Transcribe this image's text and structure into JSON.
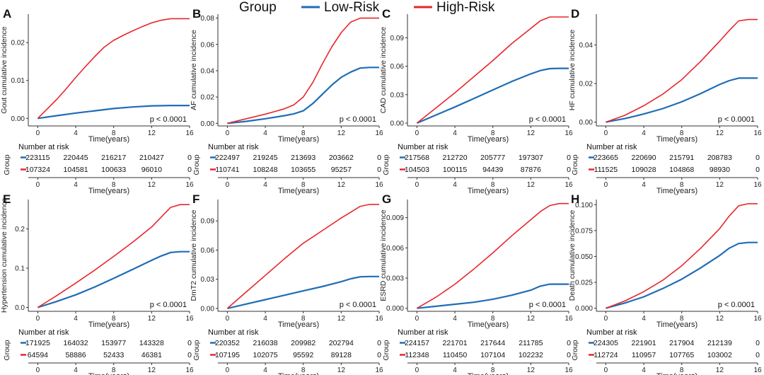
{
  "legend": {
    "title": "Group",
    "items": [
      {
        "label": "Low-Risk",
        "color": "#1f6db5"
      },
      {
        "label": "High-Risk",
        "color": "#e8262b"
      }
    ]
  },
  "risk_table": {
    "title": "Number at risk",
    "group_label": "Group",
    "x_label": "Time(years)"
  },
  "chart_data": [
    {
      "panel": "A",
      "type": "line",
      "xlabel": "Time(years)",
      "ylabel": "Gout cumulative incidence",
      "xlim": [
        -1,
        16
      ],
      "ylim": [
        -0.002,
        0.0275
      ],
      "xticks": [
        0,
        4,
        8,
        12,
        16
      ],
      "xtick_labels": [
        "0",
        "4",
        "8",
        "12",
        "16"
      ],
      "yticks": [
        0,
        0.01,
        0.02
      ],
      "ytick_labels": [
        "0.00",
        "0.01",
        "0.02"
      ],
      "pvalue": "p < 0.0001",
      "series": [
        {
          "name": "Low-Risk",
          "color": "#1f6db5",
          "x": [
            0,
            2,
            4,
            6,
            8,
            10,
            12,
            14,
            16
          ],
          "y": [
            0,
            0.0007,
            0.0014,
            0.002,
            0.0026,
            0.003,
            0.0033,
            0.0034,
            0.0034
          ]
        },
        {
          "name": "High-Risk",
          "color": "#e8262b",
          "x": [
            0,
            1,
            2,
            3,
            4,
            5,
            6,
            7,
            8,
            9,
            10,
            11,
            12,
            13,
            14,
            15,
            16
          ],
          "y": [
            0,
            0.0025,
            0.005,
            0.0078,
            0.0108,
            0.0136,
            0.0163,
            0.0188,
            0.0206,
            0.0219,
            0.0231,
            0.0242,
            0.0252,
            0.0259,
            0.0263,
            0.0263,
            0.0263
          ]
        }
      ],
      "risk_rows": [
        {
          "group": "Low-Risk",
          "counts": [
            "223115",
            "220445",
            "216217",
            "210427",
            "0"
          ]
        },
        {
          "group": "High-Risk",
          "counts": [
            "107324",
            "104581",
            "100633",
            "96010",
            "0"
          ]
        }
      ]
    },
    {
      "panel": "B",
      "type": "line",
      "xlabel": "Time(years)",
      "ylabel": "AF cumulative incidence",
      "xlim": [
        -1,
        16
      ],
      "ylim": [
        -0.002,
        0.083
      ],
      "xticks": [
        0,
        4,
        8,
        12,
        16
      ],
      "xtick_labels": [
        "0",
        "4",
        "8",
        "12",
        "16"
      ],
      "yticks": [
        0,
        0.02,
        0.04,
        0.06,
        0.08
      ],
      "ytick_labels": [
        "0.00",
        "0.02",
        "0.04",
        "0.06",
        "0.08"
      ],
      "pvalue": "p < 0.0001",
      "series": [
        {
          "name": "Low-Risk",
          "color": "#1f6db5",
          "x": [
            0,
            2,
            4,
            6,
            7,
            8,
            9,
            10,
            11,
            12,
            13,
            14,
            15,
            16
          ],
          "y": [
            0,
            0.0015,
            0.0035,
            0.0058,
            0.0072,
            0.0095,
            0.015,
            0.022,
            0.029,
            0.035,
            0.039,
            0.042,
            0.0425,
            0.0425
          ]
        },
        {
          "name": "High-Risk",
          "color": "#e8262b",
          "x": [
            0,
            2,
            4,
            6,
            7,
            8,
            9,
            10,
            11,
            12,
            13,
            14,
            15,
            16
          ],
          "y": [
            0,
            0.0035,
            0.007,
            0.011,
            0.014,
            0.02,
            0.031,
            0.045,
            0.058,
            0.069,
            0.077,
            0.08,
            0.08,
            0.08
          ]
        }
      ],
      "risk_rows": [
        {
          "group": "Low-Risk",
          "counts": [
            "222497",
            "219245",
            "213693",
            "203662",
            "0"
          ]
        },
        {
          "group": "High-Risk",
          "counts": [
            "110741",
            "108248",
            "103655",
            "95257",
            "0"
          ]
        }
      ]
    },
    {
      "panel": "C",
      "type": "line",
      "xlabel": "Time(years)",
      "ylabel": "CAD cumulative incidence",
      "xlim": [
        -1,
        16
      ],
      "ylim": [
        -0.003,
        0.115
      ],
      "xticks": [
        0,
        4,
        8,
        12,
        16
      ],
      "xtick_labels": [
        "0",
        "4",
        "8",
        "12",
        "16"
      ],
      "yticks": [
        0,
        0.03,
        0.06,
        0.09
      ],
      "ytick_labels": [
        "0.00",
        "0.03",
        "0.06",
        "0.09"
      ],
      "pvalue": "p < 0.0001",
      "series": [
        {
          "name": "Low-Risk",
          "color": "#1f6db5",
          "x": [
            0,
            2,
            4,
            6,
            8,
            10,
            12,
            13,
            14,
            15,
            16
          ],
          "y": [
            0,
            0.0085,
            0.017,
            0.026,
            0.035,
            0.044,
            0.052,
            0.0555,
            0.0575,
            0.0578,
            0.0578
          ]
        },
        {
          "name": "High-Risk",
          "color": "#e8262b",
          "x": [
            0,
            2,
            4,
            6,
            8,
            10,
            12,
            13,
            14,
            15,
            16
          ],
          "y": [
            0,
            0.016,
            0.032,
            0.049,
            0.066,
            0.084,
            0.1,
            0.108,
            0.112,
            0.112,
            0.112
          ]
        }
      ],
      "risk_rows": [
        {
          "group": "Low-Risk",
          "counts": [
            "217568",
            "212720",
            "205777",
            "197307",
            "0"
          ]
        },
        {
          "group": "High-Risk",
          "counts": [
            "104503",
            "100115",
            "94439",
            "87876",
            "0"
          ]
        }
      ]
    },
    {
      "panel": "D",
      "type": "line",
      "xlabel": "Time(years)",
      "ylabel": "HF cumulative incidence",
      "xlim": [
        -1,
        16
      ],
      "ylim": [
        -0.002,
        0.056
      ],
      "xticks": [
        0,
        4,
        8,
        12,
        16
      ],
      "xtick_labels": [
        "0",
        "4",
        "8",
        "12",
        "16"
      ],
      "yticks": [
        0,
        0.02,
        0.04
      ],
      "ytick_labels": [
        "0.00",
        "0.02",
        "0.04"
      ],
      "pvalue": "p < 0.0001",
      "series": [
        {
          "name": "Low-Risk",
          "color": "#1f6db5",
          "x": [
            0,
            2,
            4,
            6,
            8,
            10,
            12,
            13,
            14,
            15,
            16
          ],
          "y": [
            0,
            0.0018,
            0.0042,
            0.007,
            0.0105,
            0.0148,
            0.0195,
            0.0215,
            0.0228,
            0.0228,
            0.0228
          ]
        },
        {
          "name": "High-Risk",
          "color": "#e8262b",
          "x": [
            0,
            2,
            4,
            6,
            8,
            10,
            12,
            13,
            14,
            15,
            16
          ],
          "y": [
            0,
            0.0035,
            0.0085,
            0.0145,
            0.022,
            0.0315,
            0.042,
            0.0475,
            0.0525,
            0.0532,
            0.0532
          ]
        }
      ],
      "risk_rows": [
        {
          "group": "Low-Risk",
          "counts": [
            "223665",
            "220690",
            "215791",
            "208783",
            "0"
          ]
        },
        {
          "group": "High-Risk",
          "counts": [
            "111525",
            "109028",
            "104868",
            "98930",
            "0"
          ]
        }
      ]
    },
    {
      "panel": "E",
      "type": "line",
      "xlabel": "Time(years)",
      "ylabel": "Hypertension cumulative incidence",
      "xlim": [
        -1,
        16
      ],
      "ylim": [
        -0.01,
        0.275
      ],
      "xticks": [
        0,
        4,
        8,
        12,
        16
      ],
      "xtick_labels": [
        "0",
        "4",
        "8",
        "12",
        "16"
      ],
      "yticks": [
        0,
        0.1,
        0.2
      ],
      "ytick_labels": [
        "0.0",
        "0.1",
        "0.2"
      ],
      "pvalue": "p < 0.0001",
      "series": [
        {
          "name": "Low-Risk",
          "color": "#1f6db5",
          "x": [
            0,
            2,
            4,
            6,
            8,
            10,
            12,
            13,
            14,
            15,
            16
          ],
          "y": [
            0,
            0.015,
            0.032,
            0.052,
            0.074,
            0.097,
            0.12,
            0.131,
            0.14,
            0.142,
            0.142
          ]
        },
        {
          "name": "High-Risk",
          "color": "#e8262b",
          "x": [
            0,
            2,
            4,
            6,
            8,
            10,
            12,
            13,
            14,
            15,
            16
          ],
          "y": [
            0,
            0.03,
            0.062,
            0.095,
            0.13,
            0.166,
            0.205,
            0.23,
            0.255,
            0.262,
            0.262
          ]
        }
      ],
      "risk_rows": [
        {
          "group": "Low-Risk",
          "counts": [
            "171925",
            "164032",
            "153977",
            "143328",
            "0"
          ]
        },
        {
          "group": "High-Risk",
          "counts": [
            "64594",
            "58886",
            "52433",
            "46381",
            "0"
          ]
        }
      ]
    },
    {
      "panel": "F",
      "type": "line",
      "xlabel": "Time(years)",
      "ylabel": "DmT2 cumulative incidence",
      "xlim": [
        -1,
        16
      ],
      "ylim": [
        -0.003,
        0.112
      ],
      "xticks": [
        0,
        4,
        8,
        12,
        16
      ],
      "xtick_labels": [
        "0",
        "4",
        "8",
        "12",
        "16"
      ],
      "yticks": [
        0,
        0.03,
        0.06,
        0.09
      ],
      "ytick_labels": [
        "0.00",
        "0.03",
        "0.06",
        "0.09"
      ],
      "pvalue": "p < 0.0001",
      "series": [
        {
          "name": "Low-Risk",
          "color": "#1f6db5",
          "x": [
            0,
            2,
            4,
            6,
            8,
            10,
            12,
            13,
            14,
            15,
            16
          ],
          "y": [
            0,
            0.0045,
            0.009,
            0.0135,
            0.018,
            0.0225,
            0.0275,
            0.0305,
            0.0325,
            0.0328,
            0.0328
          ]
        },
        {
          "name": "High-Risk",
          "color": "#e8262b",
          "x": [
            0,
            2,
            4,
            6,
            8,
            10,
            12,
            13,
            14,
            15,
            16
          ],
          "y": [
            0,
            0.017,
            0.034,
            0.051,
            0.067,
            0.08,
            0.093,
            0.099,
            0.105,
            0.107,
            0.107
          ]
        }
      ],
      "risk_rows": [
        {
          "group": "Low-Risk",
          "counts": [
            "220352",
            "216038",
            "209982",
            "202794",
            "0"
          ]
        },
        {
          "group": "High-Risk",
          "counts": [
            "107195",
            "102075",
            "95592",
            "89128",
            "0"
          ]
        }
      ]
    },
    {
      "panel": "G",
      "type": "line",
      "xlabel": "Time(years)",
      "ylabel": "ESRD cumulative incidence",
      "xlim": [
        -1,
        16
      ],
      "ylim": [
        -0.0003,
        0.0108
      ],
      "xticks": [
        0,
        4,
        8,
        12,
        16
      ],
      "xtick_labels": [
        "0",
        "4",
        "8",
        "12",
        "16"
      ],
      "yticks": [
        0,
        0.003,
        0.006,
        0.009
      ],
      "ytick_labels": [
        "0.000",
        "0.003",
        "0.006",
        "0.009"
      ],
      "pvalue": "p < 0.0001",
      "series": [
        {
          "name": "Low-Risk",
          "color": "#1f6db5",
          "x": [
            0,
            2,
            4,
            6,
            8,
            10,
            12,
            13,
            14,
            15,
            16
          ],
          "y": [
            0,
            0.0002,
            0.0004,
            0.0006,
            0.0009,
            0.0013,
            0.0018,
            0.0022,
            0.0024,
            0.0024,
            0.0024
          ]
        },
        {
          "name": "High-Risk",
          "color": "#e8262b",
          "x": [
            0,
            2,
            4,
            6,
            8,
            10,
            12,
            13,
            14,
            15,
            16
          ],
          "y": [
            0,
            0.0011,
            0.0024,
            0.0039,
            0.0055,
            0.0072,
            0.0088,
            0.0096,
            0.0102,
            0.0104,
            0.0104
          ]
        }
      ],
      "risk_rows": [
        {
          "group": "Low-Risk",
          "counts": [
            "224157",
            "221701",
            "217644",
            "211785",
            "0"
          ]
        },
        {
          "group": "High-Risk",
          "counts": [
            "112348",
            "110450",
            "107104",
            "102232",
            "0"
          ]
        }
      ]
    },
    {
      "panel": "H",
      "type": "line",
      "xlabel": "Time(years)",
      "ylabel": "Death cumulative incidence",
      "xlim": [
        -1,
        16
      ],
      "ylim": [
        -0.003,
        0.105
      ],
      "xticks": [
        0,
        4,
        8,
        12,
        16
      ],
      "xtick_labels": [
        "0",
        "4",
        "8",
        "12",
        "16"
      ],
      "yticks": [
        0,
        0.025,
        0.05,
        0.075,
        0.1
      ],
      "ytick_labels": [
        "0.000",
        "0.025",
        "0.050",
        "0.075",
        "0.100"
      ],
      "pvalue": "p < 0.0001",
      "series": [
        {
          "name": "Low-Risk",
          "color": "#1f6db5",
          "x": [
            0,
            2,
            4,
            6,
            8,
            10,
            12,
            13,
            14,
            15,
            16
          ],
          "y": [
            0,
            0.005,
            0.011,
            0.019,
            0.028,
            0.039,
            0.051,
            0.058,
            0.0625,
            0.0635,
            0.0635
          ]
        },
        {
          "name": "High-Risk",
          "color": "#e8262b",
          "x": [
            0,
            2,
            4,
            6,
            8,
            10,
            12,
            13,
            14,
            15,
            16
          ],
          "y": [
            0,
            0.007,
            0.016,
            0.027,
            0.041,
            0.058,
            0.077,
            0.089,
            0.099,
            0.101,
            0.101
          ]
        }
      ],
      "risk_rows": [
        {
          "group": "Low-Risk",
          "counts": [
            "224305",
            "221901",
            "217904",
            "212139",
            "0"
          ]
        },
        {
          "group": "High-Risk",
          "counts": [
            "112724",
            "110957",
            "107765",
            "103002",
            "0"
          ]
        }
      ]
    }
  ]
}
